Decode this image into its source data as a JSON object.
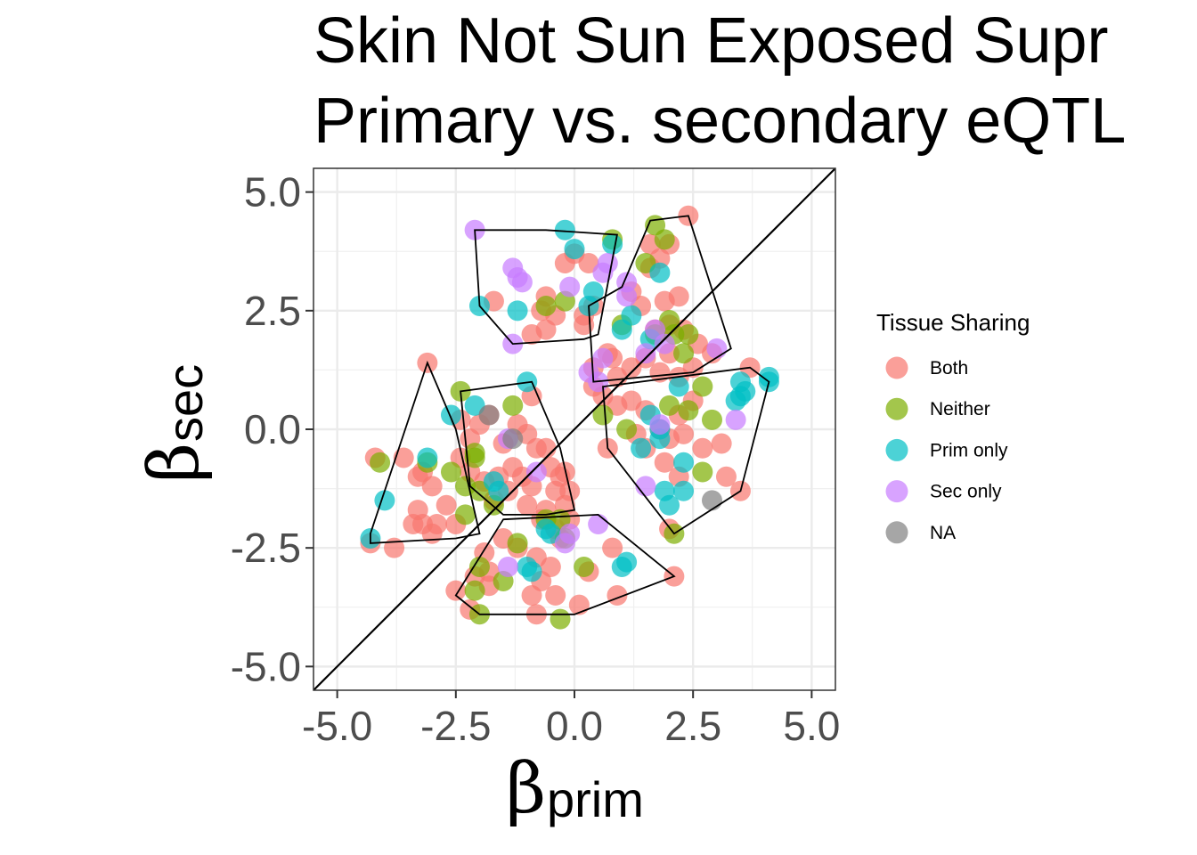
{
  "chart_data": {
    "type": "scatter",
    "title_lines": [
      "Skin Not Sun Exposed Supr",
      "Primary vs. secondary eQTL"
    ],
    "xlabel_symbol": "β",
    "xlabel_sub": "prim",
    "ylabel_symbol": "β",
    "ylabel_sub": "sec",
    "xlim": [
      -5.5,
      5.5
    ],
    "ylim": [
      -5.5,
      5.5
    ],
    "x_ticks": [
      -5.0,
      -2.5,
      0.0,
      2.5,
      5.0
    ],
    "y_ticks": [
      -5.0,
      -2.5,
      0.0,
      2.5,
      5.0
    ],
    "x_tick_labels": [
      "-5.0",
      "-2.5",
      "0.0",
      "2.5",
      "5.0"
    ],
    "y_tick_labels": [
      "-5.0",
      "-2.5",
      "0.0",
      "2.5",
      "5.0"
    ],
    "grid": true,
    "reference_line": "y = x",
    "legend": {
      "title": "Tissue Sharing",
      "placement": "right",
      "entries": [
        {
          "label": "Both",
          "color": "#F8766D"
        },
        {
          "label": "Neither",
          "color": "#7CAE00"
        },
        {
          "label": "Prim only",
          "color": "#00BFC4"
        },
        {
          "label": "Sec only",
          "color": "#C77CFF"
        },
        {
          "label": "NA",
          "color": "#808080"
        }
      ]
    },
    "series": [
      {
        "name": "Both",
        "color": "#F8766D",
        "points": [
          [
            -3.1,
            1.4
          ],
          [
            -4.2,
            -0.6
          ],
          [
            -3.6,
            -0.6
          ],
          [
            -3.2,
            -0.9
          ],
          [
            -3.3,
            -1.0
          ],
          [
            -3.0,
            -1.2
          ],
          [
            -3.3,
            -1.7
          ],
          [
            -3.2,
            -2.0
          ],
          [
            -3.4,
            -2.0
          ],
          [
            -3.0,
            -2.2
          ],
          [
            -4.3,
            -2.4
          ],
          [
            -3.8,
            -2.5
          ],
          [
            -2.7,
            -1.6
          ],
          [
            -2.5,
            -2.0
          ],
          [
            -2.9,
            -2.0
          ],
          [
            -2.4,
            0.2
          ],
          [
            -2.2,
            -0.2
          ],
          [
            -2.0,
            0.1
          ],
          [
            -1.8,
            0.3
          ],
          [
            -1.5,
            -0.3
          ],
          [
            -1.2,
            0.1
          ],
          [
            -0.9,
            0.7
          ],
          [
            -1.0,
            -0.1
          ],
          [
            -0.8,
            -0.4
          ],
          [
            -0.6,
            -0.4
          ],
          [
            -0.5,
            -0.8
          ],
          [
            -0.3,
            -1.0
          ],
          [
            -0.4,
            -1.3
          ],
          [
            -0.6,
            -1.7
          ],
          [
            -0.9,
            -1.2
          ],
          [
            -1.1,
            -1.0
          ],
          [
            -1.3,
            -0.8
          ],
          [
            -1.6,
            -1.0
          ],
          [
            -1.9,
            -1.1
          ],
          [
            -2.2,
            -0.9
          ],
          [
            -2.4,
            -0.6
          ],
          [
            -0.1,
            -1.3
          ],
          [
            -0.2,
            -1.6
          ],
          [
            -0.1,
            -1.9
          ],
          [
            -0.4,
            -2.1
          ],
          [
            -0.7,
            -1.9
          ],
          [
            -1.0,
            -1.6
          ],
          [
            -1.4,
            -1.3
          ],
          [
            -1.7,
            -1.5
          ],
          [
            -0.2,
            -0.9
          ],
          [
            -1.9,
            -2.6
          ],
          [
            -1.8,
            -3.0
          ],
          [
            -2.1,
            -3.1
          ],
          [
            -1.8,
            -3.3
          ],
          [
            -2.5,
            -3.4
          ],
          [
            -2.2,
            -3.8
          ],
          [
            -1.5,
            -2.3
          ],
          [
            -1.2,
            -2.5
          ],
          [
            -0.8,
            -2.7
          ],
          [
            -0.5,
            -2.9
          ],
          [
            -0.7,
            -3.2
          ],
          [
            -0.4,
            -3.5
          ],
          [
            -0.9,
            -3.5
          ],
          [
            -0.8,
            -3.9
          ],
          [
            0.1,
            -3.7
          ],
          [
            0.9,
            -3.5
          ],
          [
            0.3,
            -3.0
          ],
          [
            0.8,
            -2.5
          ],
          [
            -0.3,
            -2.3
          ],
          [
            2.1,
            -3.1
          ],
          [
            2.0,
            -2.1
          ],
          [
            -1.7,
            2.7
          ],
          [
            -0.6,
            2.8
          ],
          [
            -0.7,
            2.5
          ],
          [
            -0.4,
            2.4
          ],
          [
            0.2,
            2.2
          ],
          [
            0.4,
            2.6
          ],
          [
            -0.2,
            3.5
          ],
          [
            0.0,
            3.7
          ],
          [
            0.3,
            3.5
          ],
          [
            -0.9,
            2.0
          ],
          [
            -0.6,
            2.1
          ],
          [
            0.4,
            1.3
          ],
          [
            0.7,
            1.6
          ],
          [
            0.9,
            1.1
          ],
          [
            1.2,
            1.3
          ],
          [
            1.5,
            1.5
          ],
          [
            1.8,
            1.2
          ],
          [
            2.2,
            1.1
          ],
          [
            2.5,
            1.3
          ],
          [
            2.0,
            1.6
          ],
          [
            1.7,
            2.1
          ],
          [
            2.0,
            2.2
          ],
          [
            2.3,
            2.1
          ],
          [
            2.6,
            1.8
          ],
          [
            2.9,
            1.6
          ],
          [
            2.5,
            0.6
          ],
          [
            2.2,
            0.3
          ],
          [
            1.8,
            0.0
          ],
          [
            1.5,
            0.4
          ],
          [
            1.2,
            0.6
          ],
          [
            0.9,
            0.5
          ],
          [
            0.6,
            0.7
          ],
          [
            0.4,
            0.9
          ],
          [
            1.3,
            -0.1
          ],
          [
            1.5,
            -0.4
          ],
          [
            2.0,
            -0.2
          ],
          [
            2.3,
            -0.1
          ],
          [
            2.7,
            -0.4
          ],
          [
            3.1,
            -0.3
          ],
          [
            1.9,
            -0.7
          ],
          [
            2.2,
            -1.0
          ],
          [
            3.2,
            -1.0
          ],
          [
            3.5,
            -1.3
          ],
          [
            3.7,
            1.3
          ],
          [
            1.9,
            2.7
          ],
          [
            2.2,
            2.8
          ],
          [
            1.4,
            2.6
          ],
          [
            1.2,
            2.9
          ],
          [
            1.6,
            3.4
          ],
          [
            1.8,
            3.6
          ],
          [
            2.0,
            3.9
          ],
          [
            2.4,
            4.5
          ],
          [
            1.6,
            3.9
          ],
          [
            0.8,
            1.5
          ],
          [
            0.2,
            2.4
          ],
          [
            0.7,
            -0.4
          ]
        ]
      },
      {
        "name": "Neither",
        "color": "#7CAE00",
        "points": [
          [
            -2.4,
            0.8
          ],
          [
            -2.1,
            -0.6
          ],
          [
            -2.3,
            -1.2
          ],
          [
            -2.6,
            -0.9
          ],
          [
            -2.0,
            -1.3
          ],
          [
            -1.7,
            -1.6
          ],
          [
            -2.3,
            -1.8
          ],
          [
            -3.1,
            -0.7
          ],
          [
            -4.1,
            -0.7
          ],
          [
            -1.3,
            0.5
          ],
          [
            -0.6,
            -1.9
          ],
          [
            -0.3,
            -1.9
          ],
          [
            -0.2,
            -2.3
          ],
          [
            -1.2,
            -2.4
          ],
          [
            -2.0,
            -2.9
          ],
          [
            -1.5,
            -3.2
          ],
          [
            -2.1,
            -3.4
          ],
          [
            -2.0,
            -3.9
          ],
          [
            -0.3,
            -4.0
          ],
          [
            0.2,
            -2.9
          ],
          [
            0.8,
            4.0
          ],
          [
            1.7,
            4.3
          ],
          [
            1.9,
            4.0
          ],
          [
            1.5,
            3.5
          ],
          [
            1.0,
            2.2
          ],
          [
            1.7,
            2.0
          ],
          [
            2.0,
            2.3
          ],
          [
            2.1,
            2.0
          ],
          [
            2.3,
            1.6
          ],
          [
            2.4,
            0.4
          ],
          [
            2.0,
            0.5
          ],
          [
            2.1,
            -2.2
          ],
          [
            2.7,
            0.9
          ],
          [
            2.9,
            0.2
          ],
          [
            2.7,
            -0.9
          ],
          [
            0.6,
            0.3
          ],
          [
            -0.6,
            2.6
          ],
          [
            -0.2,
            2.7
          ],
          [
            1.1,
            0.0
          ],
          [
            -2.1,
            -0.5
          ],
          [
            2.4,
            2.0
          ]
        ]
      },
      {
        "name": "Prim only",
        "color": "#00BFC4",
        "points": [
          [
            -1.2,
            2.5
          ],
          [
            -2.0,
            2.6
          ],
          [
            -0.2,
            4.2
          ],
          [
            0.0,
            3.8
          ],
          [
            0.8,
            3.9
          ],
          [
            1.8,
            3.3
          ],
          [
            0.4,
            2.9
          ],
          [
            0.3,
            2.6
          ],
          [
            1.2,
            2.4
          ],
          [
            1.0,
            2.1
          ],
          [
            1.6,
            1.9
          ],
          [
            2.2,
            0.9
          ],
          [
            1.6,
            0.3
          ],
          [
            1.8,
            0.0
          ],
          [
            1.8,
            -0.2
          ],
          [
            1.4,
            -0.4
          ],
          [
            2.3,
            -0.7
          ],
          [
            1.9,
            -1.3
          ],
          [
            2.3,
            -1.3
          ],
          [
            2.0,
            -1.6
          ],
          [
            3.4,
            0.6
          ],
          [
            3.5,
            0.7
          ],
          [
            3.6,
            0.8
          ],
          [
            4.1,
            1.0
          ],
          [
            4.1,
            1.1
          ],
          [
            -4.3,
            -2.3
          ],
          [
            -4.0,
            -1.5
          ],
          [
            -3.1,
            -0.6
          ],
          [
            -2.6,
            0.3
          ],
          [
            -2.1,
            0.5
          ],
          [
            -1.7,
            -1.1
          ],
          [
            -1.6,
            -1.3
          ],
          [
            -1.0,
            1.0
          ],
          [
            -0.6,
            -2.1
          ],
          [
            -0.5,
            -2.2
          ],
          [
            -0.9,
            -3.0
          ],
          [
            -1.0,
            -2.9
          ],
          [
            1.0,
            -2.9
          ],
          [
            1.1,
            -2.8
          ],
          [
            3.5,
            1.0
          ]
        ]
      },
      {
        "name": "Sec only",
        "color": "#C77CFF",
        "points": [
          [
            -2.1,
            4.2
          ],
          [
            -1.3,
            3.4
          ],
          [
            -1.2,
            3.2
          ],
          [
            -1.1,
            3.1
          ],
          [
            0.7,
            3.5
          ],
          [
            0.6,
            3.3
          ],
          [
            1.1,
            3.1
          ],
          [
            -0.1,
            3.0
          ],
          [
            -1.3,
            1.8
          ],
          [
            1.1,
            2.8
          ],
          [
            0.6,
            1.5
          ],
          [
            0.5,
            1.0
          ],
          [
            1.5,
            1.6
          ],
          [
            1.7,
            2.1
          ],
          [
            1.9,
            1.8
          ],
          [
            3.0,
            1.7
          ],
          [
            3.4,
            0.2
          ],
          [
            1.5,
            -1.2
          ],
          [
            -1.4,
            -0.2
          ],
          [
            -0.2,
            -2.4
          ],
          [
            -0.1,
            -2.2
          ],
          [
            -1.4,
            -2.9
          ],
          [
            0.5,
            -2.0
          ],
          [
            1.8,
            0.1
          ],
          [
            -0.8,
            -0.9
          ],
          [
            0.3,
            1.2
          ]
        ]
      },
      {
        "name": "NA",
        "color": "#808080",
        "points": [
          [
            2.9,
            -1.5
          ],
          [
            -1.8,
            0.3
          ],
          [
            -1.3,
            -0.2
          ]
        ]
      }
    ],
    "hulls": [
      [
        [
          -2.0,
          4.2
        ],
        [
          -0.6,
          4.2
        ],
        [
          0.9,
          4.1
        ],
        [
          0.5,
          2.0
        ],
        [
          0.2,
          1.9
        ],
        [
          -1.3,
          1.8
        ],
        [
          -2.0,
          2.6
        ],
        [
          -2.1,
          4.2
        ]
      ],
      [
        [
          1.6,
          4.4
        ],
        [
          2.4,
          4.5
        ],
        [
          3.3,
          1.7
        ],
        [
          2.5,
          1.2
        ],
        [
          0.4,
          1.0
        ],
        [
          0.3,
          2.6
        ],
        [
          1.0,
          3.0
        ],
        [
          1.6,
          4.4
        ]
      ],
      [
        [
          -3.1,
          1.4
        ],
        [
          -2.5,
          0.0
        ],
        [
          -2.0,
          -2.2
        ],
        [
          -2.5,
          -2.3
        ],
        [
          -4.3,
          -2.4
        ],
        [
          -4.3,
          -2.2
        ],
        [
          -3.1,
          1.4
        ]
      ],
      [
        [
          -2.4,
          0.8
        ],
        [
          -0.9,
          1.0
        ],
        [
          -0.3,
          -0.4
        ],
        [
          0.0,
          -1.7
        ],
        [
          -0.6,
          -1.8
        ],
        [
          -1.5,
          -1.8
        ],
        [
          -2.2,
          -1.2
        ],
        [
          -2.4,
          0.8
        ]
      ],
      [
        [
          -1.5,
          -1.9
        ],
        [
          0.5,
          -1.8
        ],
        [
          2.1,
          -3.1
        ],
        [
          0.0,
          -3.9
        ],
        [
          -2.0,
          -3.9
        ],
        [
          -2.5,
          -3.5
        ],
        [
          -1.5,
          -1.9
        ]
      ],
      [
        [
          0.6,
          0.9
        ],
        [
          3.7,
          1.3
        ],
        [
          4.1,
          1.0
        ],
        [
          3.5,
          -1.3
        ],
        [
          2.1,
          -2.2
        ],
        [
          0.7,
          -0.4
        ],
        [
          0.6,
          0.9
        ]
      ]
    ]
  }
}
